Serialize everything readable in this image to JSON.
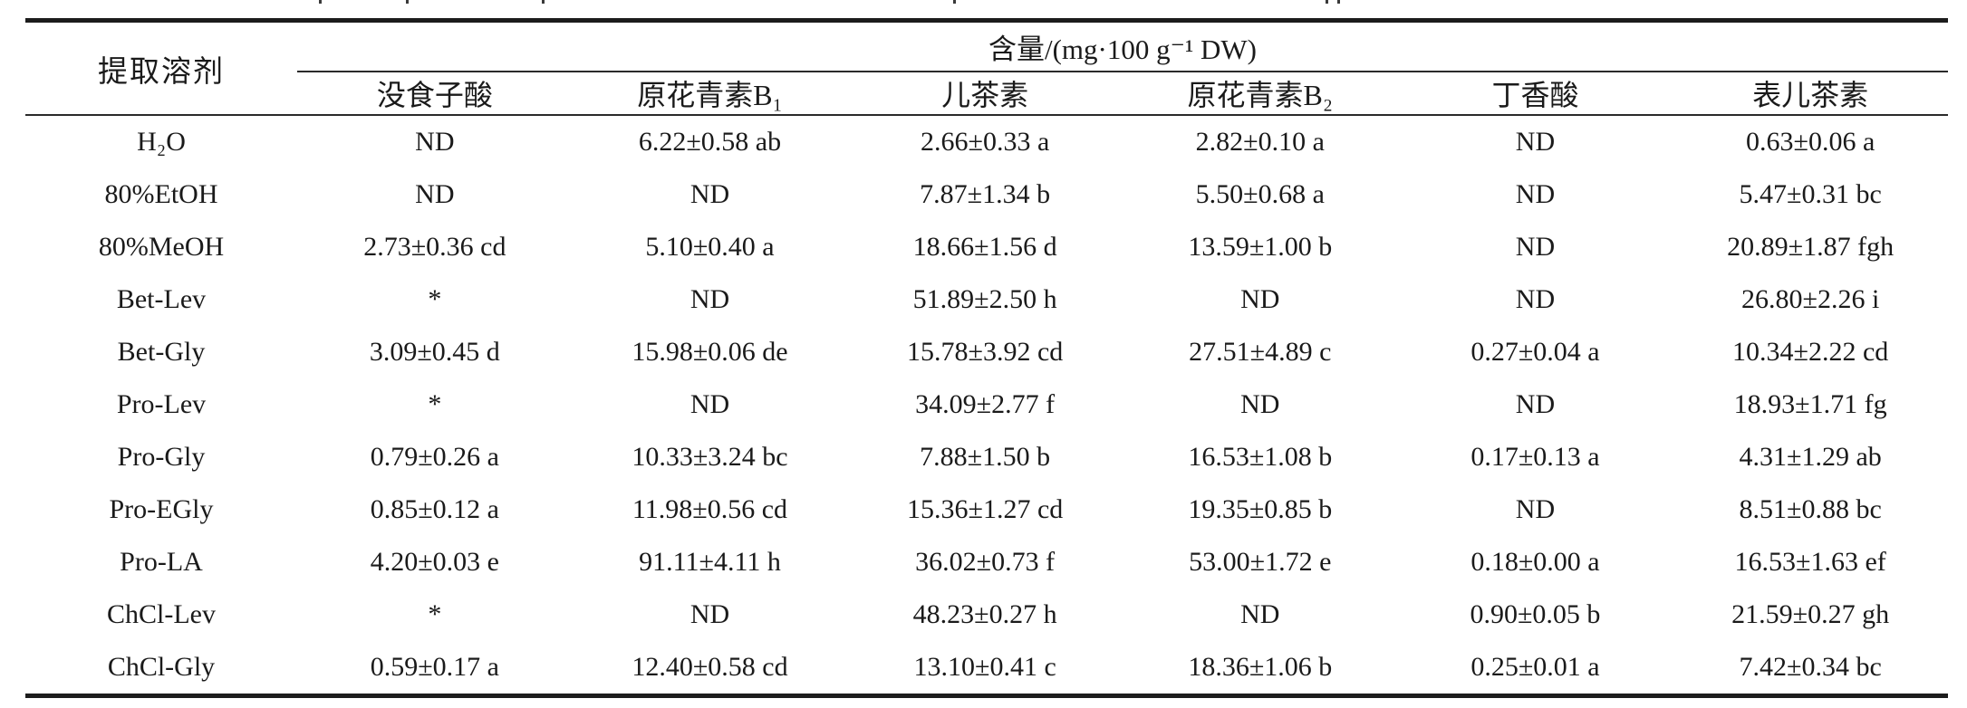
{
  "table": {
    "row_header": "提取溶剂",
    "col_group_header": "含量/(mg·100 g⁻¹ DW)",
    "columns": [
      "没食子酸",
      "原花青素B₁",
      "儿茶素",
      "原花青素B₂",
      "丁香酸",
      "表儿茶素"
    ],
    "rows": [
      {
        "solvent": "H₂O",
        "values": [
          "ND",
          "6.22±0.58 ab",
          "2.66±0.33 a",
          "2.82±0.10 a",
          "ND",
          "0.63±0.06 a"
        ]
      },
      {
        "solvent": "80%EtOH",
        "values": [
          "ND",
          "ND",
          "7.87±1.34 b",
          "5.50±0.68 a",
          "ND",
          "5.47±0.31 bc"
        ]
      },
      {
        "solvent": "80%MeOH",
        "values": [
          "2.73±0.36 cd",
          "5.10±0.40 a",
          "18.66±1.56 d",
          "13.59±1.00 b",
          "ND",
          "20.89±1.87 fgh"
        ]
      },
      {
        "solvent": "Bet-Lev",
        "values": [
          "*",
          "ND",
          "51.89±2.50 h",
          "ND",
          "ND",
          "26.80±2.26 i"
        ]
      },
      {
        "solvent": "Bet-Gly",
        "values": [
          "3.09±0.45 d",
          "15.98±0.06 de",
          "15.78±3.92 cd",
          "27.51±4.89 c",
          "0.27±0.04 a",
          "10.34±2.22 cd"
        ]
      },
      {
        "solvent": "Pro-Lev",
        "values": [
          "*",
          "ND",
          "34.09±2.77 f",
          "ND",
          "ND",
          "18.93±1.71 fg"
        ]
      },
      {
        "solvent": "Pro-Gly",
        "values": [
          "0.79±0.26 a",
          "10.33±3.24 bc",
          "7.88±1.50 b",
          "16.53±1.08 b",
          "0.17±0.13 a",
          "4.31±1.29 ab"
        ]
      },
      {
        "solvent": "Pro-EGly",
        "values": [
          "0.85±0.12 a",
          "11.98±0.56 cd",
          "15.36±1.27 cd",
          "19.35±0.85 b",
          "ND",
          "8.51±0.88 bc"
        ]
      },
      {
        "solvent": "Pro-LA",
        "values": [
          "4.20±0.03 e",
          "91.11±4.11 h",
          "36.02±0.73 f",
          "53.00±1.72 e",
          "0.18±0.00 a",
          "16.53±1.63 ef"
        ]
      },
      {
        "solvent": "ChCl-Lev",
        "values": [
          "*",
          "ND",
          "48.23±0.27 h",
          "ND",
          "0.90±0.05 b",
          "21.59±0.27 gh"
        ]
      },
      {
        "solvent": "ChCl-Gly",
        "values": [
          "0.59±0.17 a",
          "12.40±0.58 cd",
          "13.10±0.41 c",
          "18.36±1.06 b",
          "0.25±0.01 a",
          "7.42±0.34 bc"
        ]
      }
    ]
  }
}
